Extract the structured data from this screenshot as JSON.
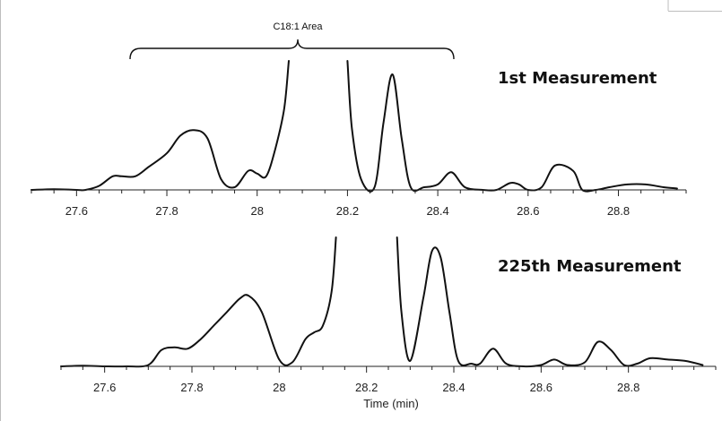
{
  "chart_data": [
    {
      "type": "line",
      "series": [
        {
          "name": "1st Measurement",
          "x": [
            27.5,
            27.55,
            27.6,
            27.62,
            27.65,
            27.68,
            27.7,
            27.73,
            27.76,
            27.8,
            27.83,
            27.86,
            27.89,
            27.92,
            27.95,
            27.98,
            28.0,
            28.02,
            28.04,
            28.06,
            28.07,
            28.2,
            28.21,
            28.23,
            28.26,
            28.28,
            28.3,
            28.32,
            28.34,
            28.37,
            28.4,
            28.43,
            28.46,
            28.5,
            28.53,
            28.56,
            28.58,
            28.6,
            28.63,
            28.66,
            28.7,
            28.72,
            28.75,
            28.78,
            28.82,
            28.86,
            28.9,
            28.93
          ],
          "y": [
            0,
            0.5,
            0,
            0,
            3,
            10,
            10,
            10,
            17,
            27,
            40,
            44,
            38,
            8,
            2,
            14,
            12,
            10,
            30,
            60,
            95,
            95,
            45,
            8,
            2,
            50,
            85,
            38,
            2,
            2,
            4,
            13,
            2,
            0,
            0,
            5,
            4,
            0,
            2,
            18,
            14,
            0,
            0,
            2,
            4,
            4,
            2,
            1
          ]
        }
      ],
      "xlim": [
        27.5,
        28.95
      ],
      "ylim": [
        0,
        95
      ],
      "xticks": [
        27.6,
        27.8,
        28.0,
        28.2,
        28.4,
        28.6,
        28.8
      ],
      "xtick_labels": [
        "27.6",
        "27.8",
        "28",
        "28.2",
        "28.4",
        "28.6",
        "28.8"
      ]
    },
    {
      "type": "line",
      "series": [
        {
          "name": "225th Measurement",
          "x": [
            27.5,
            27.55,
            27.6,
            27.65,
            27.7,
            27.73,
            27.76,
            27.79,
            27.82,
            27.85,
            27.88,
            27.91,
            27.93,
            27.96,
            28.0,
            28.03,
            28.06,
            28.08,
            28.1,
            28.12,
            28.13,
            28.27,
            28.28,
            28.3,
            28.33,
            28.35,
            28.37,
            28.39,
            28.41,
            28.44,
            28.46,
            28.49,
            28.52,
            28.56,
            28.6,
            28.63,
            28.66,
            28.7,
            28.73,
            28.76,
            28.79,
            28.82,
            28.85,
            28.89,
            28.93,
            28.97
          ],
          "y": [
            0,
            0.5,
            0,
            0,
            1,
            12,
            14,
            13,
            20,
            30,
            40,
            50,
            52,
            40,
            5,
            3,
            20,
            25,
            30,
            55,
            95,
            95,
            40,
            4,
            50,
            85,
            80,
            40,
            4,
            2,
            2,
            13,
            2,
            0,
            1,
            5,
            1,
            3,
            18,
            12,
            1,
            2,
            6,
            5,
            4,
            1
          ]
        }
      ],
      "xlim": [
        27.5,
        29.0
      ],
      "ylim": [
        0,
        95
      ],
      "xticks": [
        27.6,
        27.8,
        28.0,
        28.2,
        28.4,
        28.6,
        28.8
      ],
      "xtick_labels": [
        "27.6",
        "27.8",
        "28",
        "28.2",
        "28.4",
        "28.6",
        "28.8"
      ],
      "xlabel": "Time (min)"
    }
  ],
  "annotation": {
    "text": "C18:1 Area"
  },
  "labels": {
    "top": "1st Measurement",
    "bottom": "225th Measurement"
  }
}
